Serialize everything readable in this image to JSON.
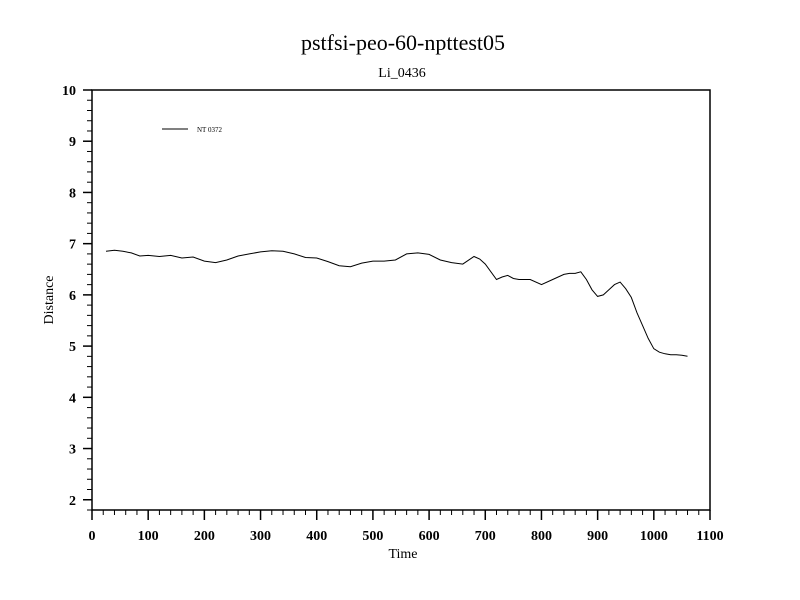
{
  "chart_data": {
    "type": "line",
    "title": "pstfsi-peo-60-npttest05",
    "subtitle": "Li_0436",
    "xlabel": "Time",
    "ylabel": "Distance",
    "xlim": [
      0,
      1100
    ],
    "ylim": [
      1.8,
      10
    ],
    "x_ticks": [
      0,
      100,
      200,
      300,
      400,
      500,
      600,
      700,
      800,
      900,
      1000,
      1100
    ],
    "y_ticks": [
      2,
      3,
      4,
      5,
      6,
      7,
      8,
      9,
      10
    ],
    "grid": false,
    "legend_position": "top-left",
    "series": [
      {
        "name": "NT 0372",
        "color": "#000000",
        "x": [
          25,
          40,
          55,
          70,
          85,
          100,
          120,
          140,
          160,
          180,
          200,
          220,
          240,
          260,
          280,
          300,
          320,
          340,
          360,
          380,
          400,
          420,
          440,
          460,
          480,
          500,
          520,
          540,
          560,
          580,
          600,
          620,
          640,
          660,
          680,
          690,
          700,
          720,
          730,
          740,
          750,
          760,
          780,
          800,
          820,
          840,
          850,
          860,
          870,
          880,
          890,
          900,
          910,
          920,
          930,
          940,
          950,
          960,
          970,
          980,
          990,
          1000,
          1010,
          1020,
          1030,
          1040,
          1050,
          1060
        ],
        "y": [
          6.85,
          6.87,
          6.85,
          6.82,
          6.76,
          6.77,
          6.75,
          6.77,
          6.72,
          6.74,
          6.66,
          6.63,
          6.68,
          6.76,
          6.8,
          6.84,
          6.86,
          6.85,
          6.8,
          6.73,
          6.72,
          6.65,
          6.57,
          6.55,
          6.62,
          6.66,
          6.66,
          6.68,
          6.8,
          6.82,
          6.79,
          6.68,
          6.63,
          6.6,
          6.75,
          6.7,
          6.6,
          6.3,
          6.35,
          6.38,
          6.32,
          6.3,
          6.3,
          6.2,
          6.3,
          6.4,
          6.42,
          6.42,
          6.45,
          6.3,
          6.1,
          5.97,
          6.0,
          6.1,
          6.2,
          6.25,
          6.12,
          5.95,
          5.65,
          5.4,
          5.15,
          4.95,
          4.88,
          4.85,
          4.83,
          4.83,
          4.82,
          4.8
        ]
      }
    ]
  }
}
